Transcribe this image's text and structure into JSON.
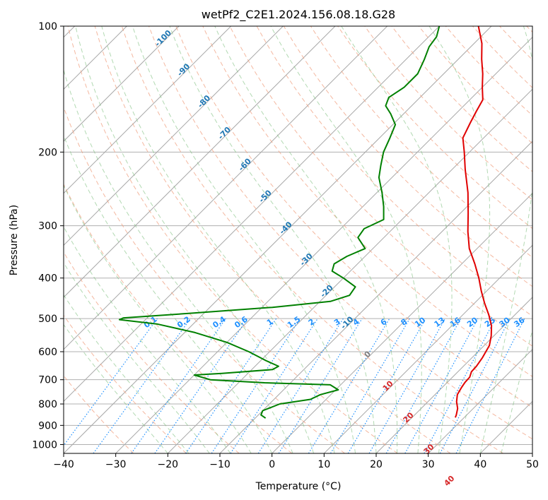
{
  "chart_data": {
    "type": "line",
    "title": "wetPf2_C2E1.2024.156.08.18.G28",
    "xlabel": "Temperature (°C)",
    "ylabel": "Pressure (hPa)",
    "xlim": [
      -40,
      50
    ],
    "ylim": [
      1050,
      100
    ],
    "y_scale": "log",
    "x_ticks": [
      "−40",
      "−30",
      "−20",
      "−10",
      "0",
      "10",
      "20",
      "30",
      "40",
      "50"
    ],
    "y_ticks": [
      1000,
      900,
      800,
      700,
      600,
      500,
      400,
      300,
      200,
      100
    ],
    "skew_degrees": 45,
    "grid": true,
    "series": [
      {
        "color": "#e00000",
        "points": [
          {
            "p": 862,
            "t": 28.3
          },
          {
            "p": 850,
            "t": 28.0
          },
          {
            "p": 820,
            "t": 27.0
          },
          {
            "p": 790,
            "t": 25.5
          },
          {
            "p": 760,
            "t": 24.3
          },
          {
            "p": 730,
            "t": 23.7
          },
          {
            "p": 710,
            "t": 23.4
          },
          {
            "p": 690,
            "t": 23.3
          },
          {
            "p": 670,
            "t": 22.6
          },
          {
            "p": 650,
            "t": 22.5
          },
          {
            "p": 620,
            "t": 22.0
          },
          {
            "p": 580,
            "t": 21.0
          },
          {
            "p": 550,
            "t": 19.5
          },
          {
            "p": 520,
            "t": 17.6
          },
          {
            "p": 490,
            "t": 15.0
          },
          {
            "p": 460,
            "t": 12.0
          },
          {
            "p": 430,
            "t": 9.0
          },
          {
            "p": 400,
            "t": 6.0
          },
          {
            "p": 370,
            "t": 2.5
          },
          {
            "p": 340,
            "t": -1.5
          },
          {
            "p": 310,
            "t": -5.0
          },
          {
            "p": 280,
            "t": -8.5
          },
          {
            "p": 250,
            "t": -12.5
          },
          {
            "p": 220,
            "t": -17.5
          },
          {
            "p": 200,
            "t": -21.0
          },
          {
            "p": 185,
            "t": -24.0
          },
          {
            "p": 170,
            "t": -25.5
          },
          {
            "p": 160,
            "t": -26.5
          },
          {
            "p": 150,
            "t": -27.5
          },
          {
            "p": 140,
            "t": -30.0
          },
          {
            "p": 130,
            "t": -32.5
          },
          {
            "p": 120,
            "t": -35.5
          },
          {
            "p": 110,
            "t": -38.5
          },
          {
            "p": 100,
            "t": -42.5
          }
        ]
      },
      {
        "color": "#008000",
        "points": [
          {
            "p": 865,
            "t": -8.0
          },
          {
            "p": 850,
            "t": -9.5
          },
          {
            "p": 830,
            "t": -10.0
          },
          {
            "p": 800,
            "t": -8.0
          },
          {
            "p": 780,
            "t": -3.0
          },
          {
            "p": 760,
            "t": -2.0
          },
          {
            "p": 740,
            "t": 0.5
          },
          {
            "p": 720,
            "t": -2.0
          },
          {
            "p": 712,
            "t": -15.0
          },
          {
            "p": 700,
            "t": -26.0
          },
          {
            "p": 682,
            "t": -30.0
          },
          {
            "p": 676,
            "t": -25.0
          },
          {
            "p": 662,
            "t": -16.0
          },
          {
            "p": 650,
            "t": -15.5
          },
          {
            "p": 630,
            "t": -19.0
          },
          {
            "p": 600,
            "t": -24.0
          },
          {
            "p": 570,
            "t": -30.0
          },
          {
            "p": 540,
            "t": -38.0
          },
          {
            "p": 515,
            "t": -47.0
          },
          {
            "p": 503,
            "t": -55.0
          },
          {
            "p": 498,
            "t": -54.5
          },
          {
            "p": 485,
            "t": -42.0
          },
          {
            "p": 470,
            "t": -28.0
          },
          {
            "p": 455,
            "t": -18.0
          },
          {
            "p": 440,
            "t": -15.5
          },
          {
            "p": 420,
            "t": -16.0
          },
          {
            "p": 400,
            "t": -20.0
          },
          {
            "p": 385,
            "t": -23.5
          },
          {
            "p": 370,
            "t": -24.5
          },
          {
            "p": 355,
            "t": -23.5
          },
          {
            "p": 340,
            "t": -21.5
          },
          {
            "p": 320,
            "t": -25.0
          },
          {
            "p": 305,
            "t": -25.5
          },
          {
            "p": 290,
            "t": -23.5
          },
          {
            "p": 270,
            "t": -26.0
          },
          {
            "p": 250,
            "t": -29.0
          },
          {
            "p": 230,
            "t": -32.5
          },
          {
            "p": 215,
            "t": -34.5
          },
          {
            "p": 200,
            "t": -36.5
          },
          {
            "p": 185,
            "t": -38.0
          },
          {
            "p": 172,
            "t": -39.5
          },
          {
            "p": 162,
            "t": -42.5
          },
          {
            "p": 155,
            "t": -45.0
          },
          {
            "p": 148,
            "t": -46.0
          },
          {
            "p": 140,
            "t": -45.0
          },
          {
            "p": 130,
            "t": -45.0
          },
          {
            "p": 120,
            "t": -46.5
          },
          {
            "p": 112,
            "t": -48.0
          },
          {
            "p": 106,
            "t": -48.5
          },
          {
            "p": 100,
            "t": -50.0
          }
        ]
      }
    ],
    "mixing_ratio_labels": [
      "0.1",
      "0.2",
      "0.4",
      "0.6",
      "1",
      "1.5",
      "2",
      "3",
      "4",
      "6",
      "8",
      "10",
      "13",
      "16",
      "20",
      "25",
      "30",
      "36"
    ],
    "mixing_ratio_color": "#1e90ff",
    "dry_adiabat_labels": [
      "-100",
      "-90",
      "-80",
      "-70",
      "-60",
      "-50",
      "-40",
      "-30",
      "-20",
      "-10",
      "0",
      "10",
      "20",
      "30",
      "40"
    ],
    "dry_adiabat_label_colors": {
      "cold": "#1f77b4",
      "zero": "#7f7f7f",
      "warm": "#d62728"
    }
  }
}
